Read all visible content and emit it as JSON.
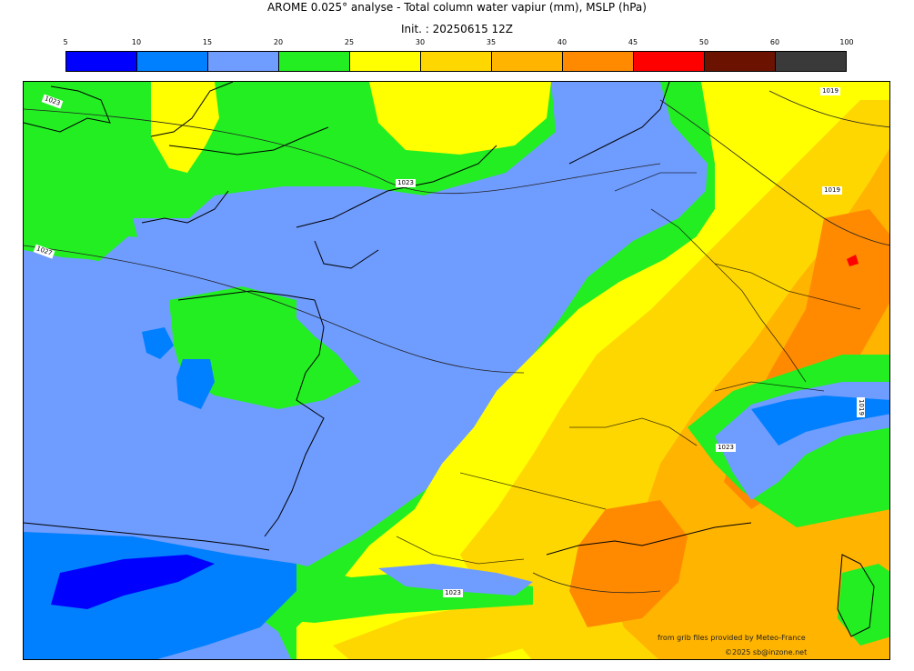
{
  "header": {
    "title": "AROME 0.025° analyse - Total column water vapiur (mm), MSLP (hPa)",
    "init": "Init. : 20250615 12Z"
  },
  "colorbar": {
    "ticks": [
      "5",
      "10",
      "15",
      "20",
      "25",
      "30",
      "35",
      "40",
      "45",
      "50",
      "60",
      "100"
    ],
    "colors": [
      "#0000ff",
      "#0080ff",
      "#6f9cff",
      "#22ee22",
      "#ffff00",
      "#ffd700",
      "#ffb400",
      "#ff8a00",
      "#ff0000",
      "#6b1200",
      "#3a3a3a"
    ]
  },
  "map": {
    "isobar_labels": [
      "1023",
      "1027",
      "1023",
      "1019",
      "1019",
      "1023",
      "1023",
      "1019"
    ]
  },
  "credits": {
    "line1": "from grib files provided by Meteo-France",
    "line2": "©2025 sb@inzone.net"
  }
}
